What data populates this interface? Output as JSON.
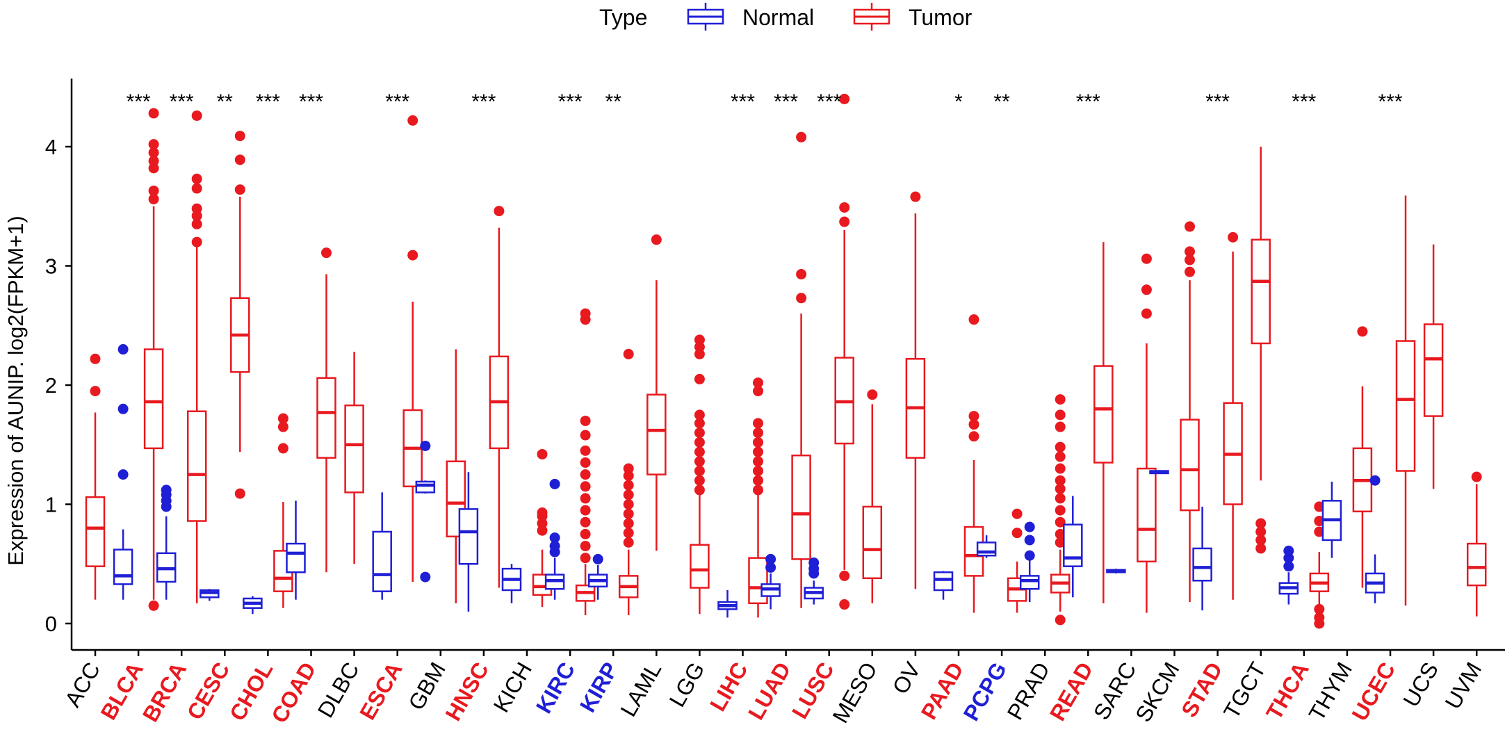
{
  "chart_data": {
    "type": "boxplot",
    "title": "",
    "xlabel": "",
    "ylabel": "Expression of AUNIP. log2(FPKM+1)",
    "ylim": [
      -0.2,
      4.6
    ],
    "yticks": [
      0,
      1,
      2,
      3,
      4
    ],
    "legend": {
      "title": "Type",
      "position": "top",
      "entries": [
        {
          "name": "Normal",
          "color": "#1f1fd6"
        },
        {
          "name": "Tumor",
          "color": "#e8191f"
        }
      ]
    },
    "categories": [
      {
        "label": "ACC",
        "color": "#000000",
        "bold": false,
        "sig": "",
        "tumor": {
          "q1": 0.48,
          "med": 0.8,
          "q3": 1.06,
          "lo": 0.2,
          "hi": 1.77,
          "out": [
            1.95,
            2.22
          ]
        }
      },
      {
        "label": "BLCA",
        "color": "#e8191f",
        "bold": true,
        "sig": "***",
        "normal": {
          "q1": 0.33,
          "med": 0.4,
          "q3": 0.62,
          "lo": 0.2,
          "hi": 0.79,
          "out": [
            1.25,
            1.8,
            2.3
          ]
        },
        "tumor": {
          "q1": 1.47,
          "med": 1.86,
          "q3": 2.3,
          "lo": 0.2,
          "hi": 3.5,
          "out": [
            0.15,
            3.56,
            3.63,
            3.82,
            3.88,
            3.95,
            4.02,
            4.28
          ]
        }
      },
      {
        "label": "BRCA",
        "color": "#e8191f",
        "bold": true,
        "sig": "***",
        "normal": {
          "q1": 0.35,
          "med": 0.46,
          "q3": 0.59,
          "lo": 0.2,
          "hi": 0.9,
          "out": [
            0.98,
            1.03,
            1.08,
            1.12
          ]
        },
        "tumor": {
          "q1": 0.86,
          "med": 1.25,
          "q3": 1.78,
          "lo": 0.17,
          "hi": 3.16,
          "out": [
            3.2,
            3.35,
            3.42,
            3.48,
            3.65,
            3.73,
            4.26
          ]
        }
      },
      {
        "label": "CESC",
        "color": "#e8191f",
        "bold": true,
        "sig": "**",
        "normal": {
          "q1": 0.22,
          "med": 0.26,
          "q3": 0.28,
          "lo": 0.19,
          "hi": 0.29,
          "out": []
        },
        "tumor": {
          "q1": 2.11,
          "med": 2.42,
          "q3": 2.73,
          "lo": 1.44,
          "hi": 3.58,
          "out": [
            1.09,
            3.64,
            3.89,
            4.09
          ]
        }
      },
      {
        "label": "CHOL",
        "color": "#e8191f",
        "bold": true,
        "sig": "***",
        "normal": {
          "q1": 0.13,
          "med": 0.17,
          "q3": 0.21,
          "lo": 0.08,
          "hi": 0.23,
          "out": []
        },
        "tumor": {
          "q1": 0.27,
          "med": 0.38,
          "q3": 0.61,
          "lo": 0.13,
          "hi": 1.02,
          "out": [
            1.47,
            1.65,
            1.72
          ]
        }
      },
      {
        "label": "COAD",
        "color": "#e8191f",
        "bold": true,
        "sig": "***",
        "normal": {
          "q1": 0.43,
          "med": 0.59,
          "q3": 0.67,
          "lo": 0.2,
          "hi": 1.03,
          "out": []
        },
        "tumor": {
          "q1": 1.39,
          "med": 1.77,
          "q3": 2.06,
          "lo": 0.43,
          "hi": 2.93,
          "out": [
            3.11
          ]
        }
      },
      {
        "label": "DLBC",
        "color": "#000000",
        "bold": false,
        "sig": "",
        "tumor": {
          "q1": 1.1,
          "med": 1.5,
          "q3": 1.83,
          "lo": 0.5,
          "hi": 2.28,
          "out": []
        }
      },
      {
        "label": "ESCA",
        "color": "#e8191f",
        "bold": true,
        "sig": "***",
        "normal": {
          "q1": 0.27,
          "med": 0.41,
          "q3": 0.77,
          "lo": 0.2,
          "hi": 1.1,
          "out": []
        },
        "tumor": {
          "q1": 1.15,
          "med": 1.47,
          "q3": 1.79,
          "lo": 0.35,
          "hi": 2.7,
          "out": [
            3.09,
            4.22
          ]
        }
      },
      {
        "label": "GBM",
        "color": "#000000",
        "bold": false,
        "sig": "",
        "normal": {
          "q1": 1.1,
          "med": 1.16,
          "q3": 1.19,
          "lo": 1.09,
          "hi": 1.2,
          "out": [
            0.39,
            1.49
          ]
        },
        "tumor": {
          "q1": 0.73,
          "med": 1.01,
          "q3": 1.36,
          "lo": 0.17,
          "hi": 2.3,
          "out": []
        }
      },
      {
        "label": "HNSC",
        "color": "#e8191f",
        "bold": true,
        "sig": "***",
        "normal": {
          "q1": 0.5,
          "med": 0.77,
          "q3": 0.96,
          "lo": 0.1,
          "hi": 1.27,
          "out": []
        },
        "tumor": {
          "q1": 1.47,
          "med": 1.86,
          "q3": 2.24,
          "lo": 0.3,
          "hi": 3.32,
          "out": [
            3.46
          ]
        }
      },
      {
        "label": "KICH",
        "color": "#000000",
        "bold": false,
        "sig": "",
        "normal": {
          "q1": 0.28,
          "med": 0.37,
          "q3": 0.46,
          "lo": 0.17,
          "hi": 0.5,
          "out": []
        },
        "tumor": {
          "q1": 0.24,
          "med": 0.31,
          "q3": 0.41,
          "lo": 0.14,
          "hi": 0.62,
          "out": [
            0.78,
            0.84,
            0.9,
            0.93,
            1.42
          ]
        }
      },
      {
        "label": "KIRC",
        "color": "#1f1fd6",
        "bold": true,
        "sig": "***",
        "normal": {
          "q1": 0.29,
          "med": 0.36,
          "q3": 0.41,
          "lo": 0.2,
          "hi": 0.55,
          "out": [
            0.6,
            0.65,
            0.72,
            1.17
          ]
        },
        "tumor": {
          "q1": 0.19,
          "med": 0.26,
          "q3": 0.32,
          "lo": 0.07,
          "hi": 0.5,
          "out": [
            0.55,
            0.65,
            0.75,
            0.85,
            0.95,
            1.05,
            1.15,
            1.25,
            1.35,
            1.45,
            1.58,
            1.7,
            2.55,
            2.6
          ]
        }
      },
      {
        "label": "KIRP",
        "color": "#1f1fd6",
        "bold": true,
        "sig": "**",
        "normal": {
          "q1": 0.31,
          "med": 0.36,
          "q3": 0.41,
          "lo": 0.2,
          "hi": 0.49,
          "out": [
            0.54
          ]
        },
        "tumor": {
          "q1": 0.22,
          "med": 0.31,
          "q3": 0.4,
          "lo": 0.07,
          "hi": 0.62,
          "out": [
            0.68,
            0.76,
            0.84,
            0.92,
            1.0,
            1.08,
            1.16,
            1.24,
            1.3,
            2.26
          ]
        }
      },
      {
        "label": "LAML",
        "color": "#000000",
        "bold": false,
        "sig": "",
        "tumor": {
          "q1": 1.25,
          "med": 1.62,
          "q3": 1.92,
          "lo": 0.61,
          "hi": 2.88,
          "out": [
            3.22
          ]
        }
      },
      {
        "label": "LGG",
        "color": "#000000",
        "bold": false,
        "sig": "",
        "tumor": {
          "q1": 0.3,
          "med": 0.45,
          "q3": 0.66,
          "lo": 0.08,
          "hi": 1.1,
          "out": [
            1.12,
            1.2,
            1.28,
            1.36,
            1.44,
            1.52,
            1.6,
            1.68,
            1.75,
            2.05,
            2.26,
            2.32,
            2.38
          ]
        }
      },
      {
        "label": "LIHC",
        "color": "#e8191f",
        "bold": true,
        "sig": "***",
        "normal": {
          "q1": 0.12,
          "med": 0.15,
          "q3": 0.18,
          "lo": 0.05,
          "hi": 0.28,
          "out": []
        },
        "tumor": {
          "q1": 0.17,
          "med": 0.3,
          "q3": 0.55,
          "lo": 0.05,
          "hi": 1.08,
          "out": [
            1.12,
            1.2,
            1.28,
            1.36,
            1.44,
            1.52,
            1.6,
            1.68,
            1.95,
            2.02
          ]
        }
      },
      {
        "label": "LUAD",
        "color": "#e8191f",
        "bold": true,
        "sig": "***",
        "normal": {
          "q1": 0.23,
          "med": 0.29,
          "q3": 0.33,
          "lo": 0.12,
          "hi": 0.42,
          "out": [
            0.47,
            0.54
          ]
        },
        "tumor": {
          "q1": 0.54,
          "med": 0.92,
          "q3": 1.41,
          "lo": 0.13,
          "hi": 2.6,
          "out": [
            2.73,
            2.93,
            4.08
          ]
        }
      },
      {
        "label": "LUSC",
        "color": "#e8191f",
        "bold": true,
        "sig": "***",
        "normal": {
          "q1": 0.21,
          "med": 0.26,
          "q3": 0.3,
          "lo": 0.16,
          "hi": 0.36,
          "out": [
            0.42,
            0.46,
            0.51
          ]
        },
        "tumor": {
          "q1": 1.51,
          "med": 1.86,
          "q3": 2.23,
          "lo": 0.45,
          "hi": 3.3,
          "out": [
            0.16,
            0.4,
            3.37,
            3.49,
            4.4
          ]
        }
      },
      {
        "label": "MESO",
        "color": "#000000",
        "bold": false,
        "sig": "",
        "tumor": {
          "q1": 0.38,
          "med": 0.62,
          "q3": 0.98,
          "lo": 0.17,
          "hi": 1.84,
          "out": [
            1.92
          ]
        }
      },
      {
        "label": "OV",
        "color": "#000000",
        "bold": false,
        "sig": "",
        "tumor": {
          "q1": 1.39,
          "med": 1.81,
          "q3": 2.22,
          "lo": 0.29,
          "hi": 3.44,
          "out": [
            3.58
          ]
        }
      },
      {
        "label": "PAAD",
        "color": "#e8191f",
        "bold": true,
        "sig": "*",
        "normal": {
          "q1": 0.28,
          "med": 0.37,
          "q3": 0.43,
          "lo": 0.2,
          "hi": 0.44,
          "out": []
        },
        "tumor": {
          "q1": 0.4,
          "med": 0.57,
          "q3": 0.81,
          "lo": 0.09,
          "hi": 1.37,
          "out": [
            1.57,
            1.67,
            1.74,
            2.55
          ]
        }
      },
      {
        "label": "PCPG",
        "color": "#1f1fd6",
        "bold": true,
        "sig": "**",
        "normal": {
          "q1": 0.57,
          "med": 0.6,
          "q3": 0.68,
          "lo": 0.55,
          "hi": 0.74,
          "out": []
        },
        "tumor": {
          "q1": 0.19,
          "med": 0.29,
          "q3": 0.38,
          "lo": 0.09,
          "hi": 0.52,
          "out": [
            0.76,
            0.92
          ]
        }
      },
      {
        "label": "PRAD",
        "color": "#000000",
        "bold": false,
        "sig": "",
        "normal": {
          "q1": 0.29,
          "med": 0.36,
          "q3": 0.4,
          "lo": 0.18,
          "hi": 0.53,
          "out": [
            0.57,
            0.7,
            0.81
          ]
        },
        "tumor": {
          "q1": 0.26,
          "med": 0.34,
          "q3": 0.41,
          "lo": 0.1,
          "hi": 0.62,
          "out": [
            0.03,
            0.68,
            0.75,
            0.85,
            0.95,
            1.05,
            1.13,
            1.2,
            1.3,
            1.4,
            1.48,
            1.65,
            1.75,
            1.88
          ]
        }
      },
      {
        "label": "READ",
        "color": "#e8191f",
        "bold": true,
        "sig": "***",
        "normal": {
          "q1": 0.48,
          "med": 0.55,
          "q3": 0.83,
          "lo": 0.22,
          "hi": 1.07,
          "out": []
        },
        "tumor": {
          "q1": 1.35,
          "med": 1.8,
          "q3": 2.16,
          "lo": 0.17,
          "hi": 3.2,
          "out": []
        }
      },
      {
        "label": "SARC",
        "color": "#000000",
        "bold": false,
        "sig": "",
        "normal": {
          "q1": 0.43,
          "med": 0.44,
          "q3": 0.45,
          "lo": 0.42,
          "hi": 0.46,
          "out": []
        },
        "tumor": {
          "q1": 0.52,
          "med": 0.79,
          "q3": 1.3,
          "lo": 0.09,
          "hi": 2.35,
          "out": [
            2.6,
            2.8,
            3.06
          ]
        }
      },
      {
        "label": "SKCM",
        "color": "#000000",
        "bold": false,
        "sig": "",
        "normal": {
          "q1": 1.26,
          "med": 1.27,
          "q3": 1.28,
          "lo": 1.26,
          "hi": 1.28,
          "out": []
        },
        "tumor": {
          "q1": 0.95,
          "med": 1.29,
          "q3": 1.71,
          "lo": 0.18,
          "hi": 2.88,
          "out": [
            2.95,
            3.05,
            3.12,
            3.33
          ]
        }
      },
      {
        "label": "STAD",
        "color": "#e8191f",
        "bold": true,
        "sig": "***",
        "normal": {
          "q1": 0.36,
          "med": 0.47,
          "q3": 0.63,
          "lo": 0.11,
          "hi": 0.98,
          "out": []
        },
        "tumor": {
          "q1": 1.0,
          "med": 1.42,
          "q3": 1.85,
          "lo": 0.2,
          "hi": 3.12,
          "out": [
            3.24
          ]
        }
      },
      {
        "label": "TGCT",
        "color": "#000000",
        "bold": false,
        "sig": "",
        "tumor": {
          "q1": 2.35,
          "med": 2.87,
          "q3": 3.22,
          "lo": 1.2,
          "hi": 4.0,
          "out": [
            0.63,
            0.7,
            0.77,
            0.84
          ]
        }
      },
      {
        "label": "THCA",
        "color": "#e8191f",
        "bold": true,
        "sig": "***",
        "normal": {
          "q1": 0.25,
          "med": 0.3,
          "q3": 0.34,
          "lo": 0.16,
          "hi": 0.43,
          "out": [
            0.48,
            0.55,
            0.61
          ]
        },
        "tumor": {
          "q1": 0.27,
          "med": 0.34,
          "q3": 0.42,
          "lo": 0.13,
          "hi": 0.6,
          "out": [
            0.0,
            0.05,
            0.12,
            0.77,
            0.86,
            0.98
          ]
        }
      },
      {
        "label": "THYM",
        "color": "#000000",
        "bold": false,
        "sig": "",
        "normal": {
          "q1": 0.7,
          "med": 0.87,
          "q3": 1.03,
          "lo": 0.55,
          "hi": 1.19,
          "out": []
        },
        "tumor": {
          "q1": 0.94,
          "med": 1.2,
          "q3": 1.47,
          "lo": 0.3,
          "hi": 1.99,
          "out": [
            2.45
          ]
        }
      },
      {
        "label": "UCEC",
        "color": "#e8191f",
        "bold": true,
        "sig": "***",
        "normal": {
          "q1": 0.26,
          "med": 0.34,
          "q3": 0.42,
          "lo": 0.17,
          "hi": 0.58,
          "out": [
            1.2
          ]
        },
        "tumor": {
          "q1": 1.28,
          "med": 1.88,
          "q3": 2.37,
          "lo": 0.15,
          "hi": 3.59,
          "out": []
        }
      },
      {
        "label": "UCS",
        "color": "#000000",
        "bold": false,
        "sig": "",
        "tumor": {
          "q1": 1.74,
          "med": 2.22,
          "q3": 2.51,
          "lo": 1.13,
          "hi": 3.18,
          "out": []
        }
      },
      {
        "label": "UVM",
        "color": "#000000",
        "bold": false,
        "sig": "",
        "tumor": {
          "q1": 0.32,
          "med": 0.47,
          "q3": 0.67,
          "lo": 0.06,
          "hi": 1.17,
          "out": [
            1.23
          ]
        }
      }
    ]
  }
}
